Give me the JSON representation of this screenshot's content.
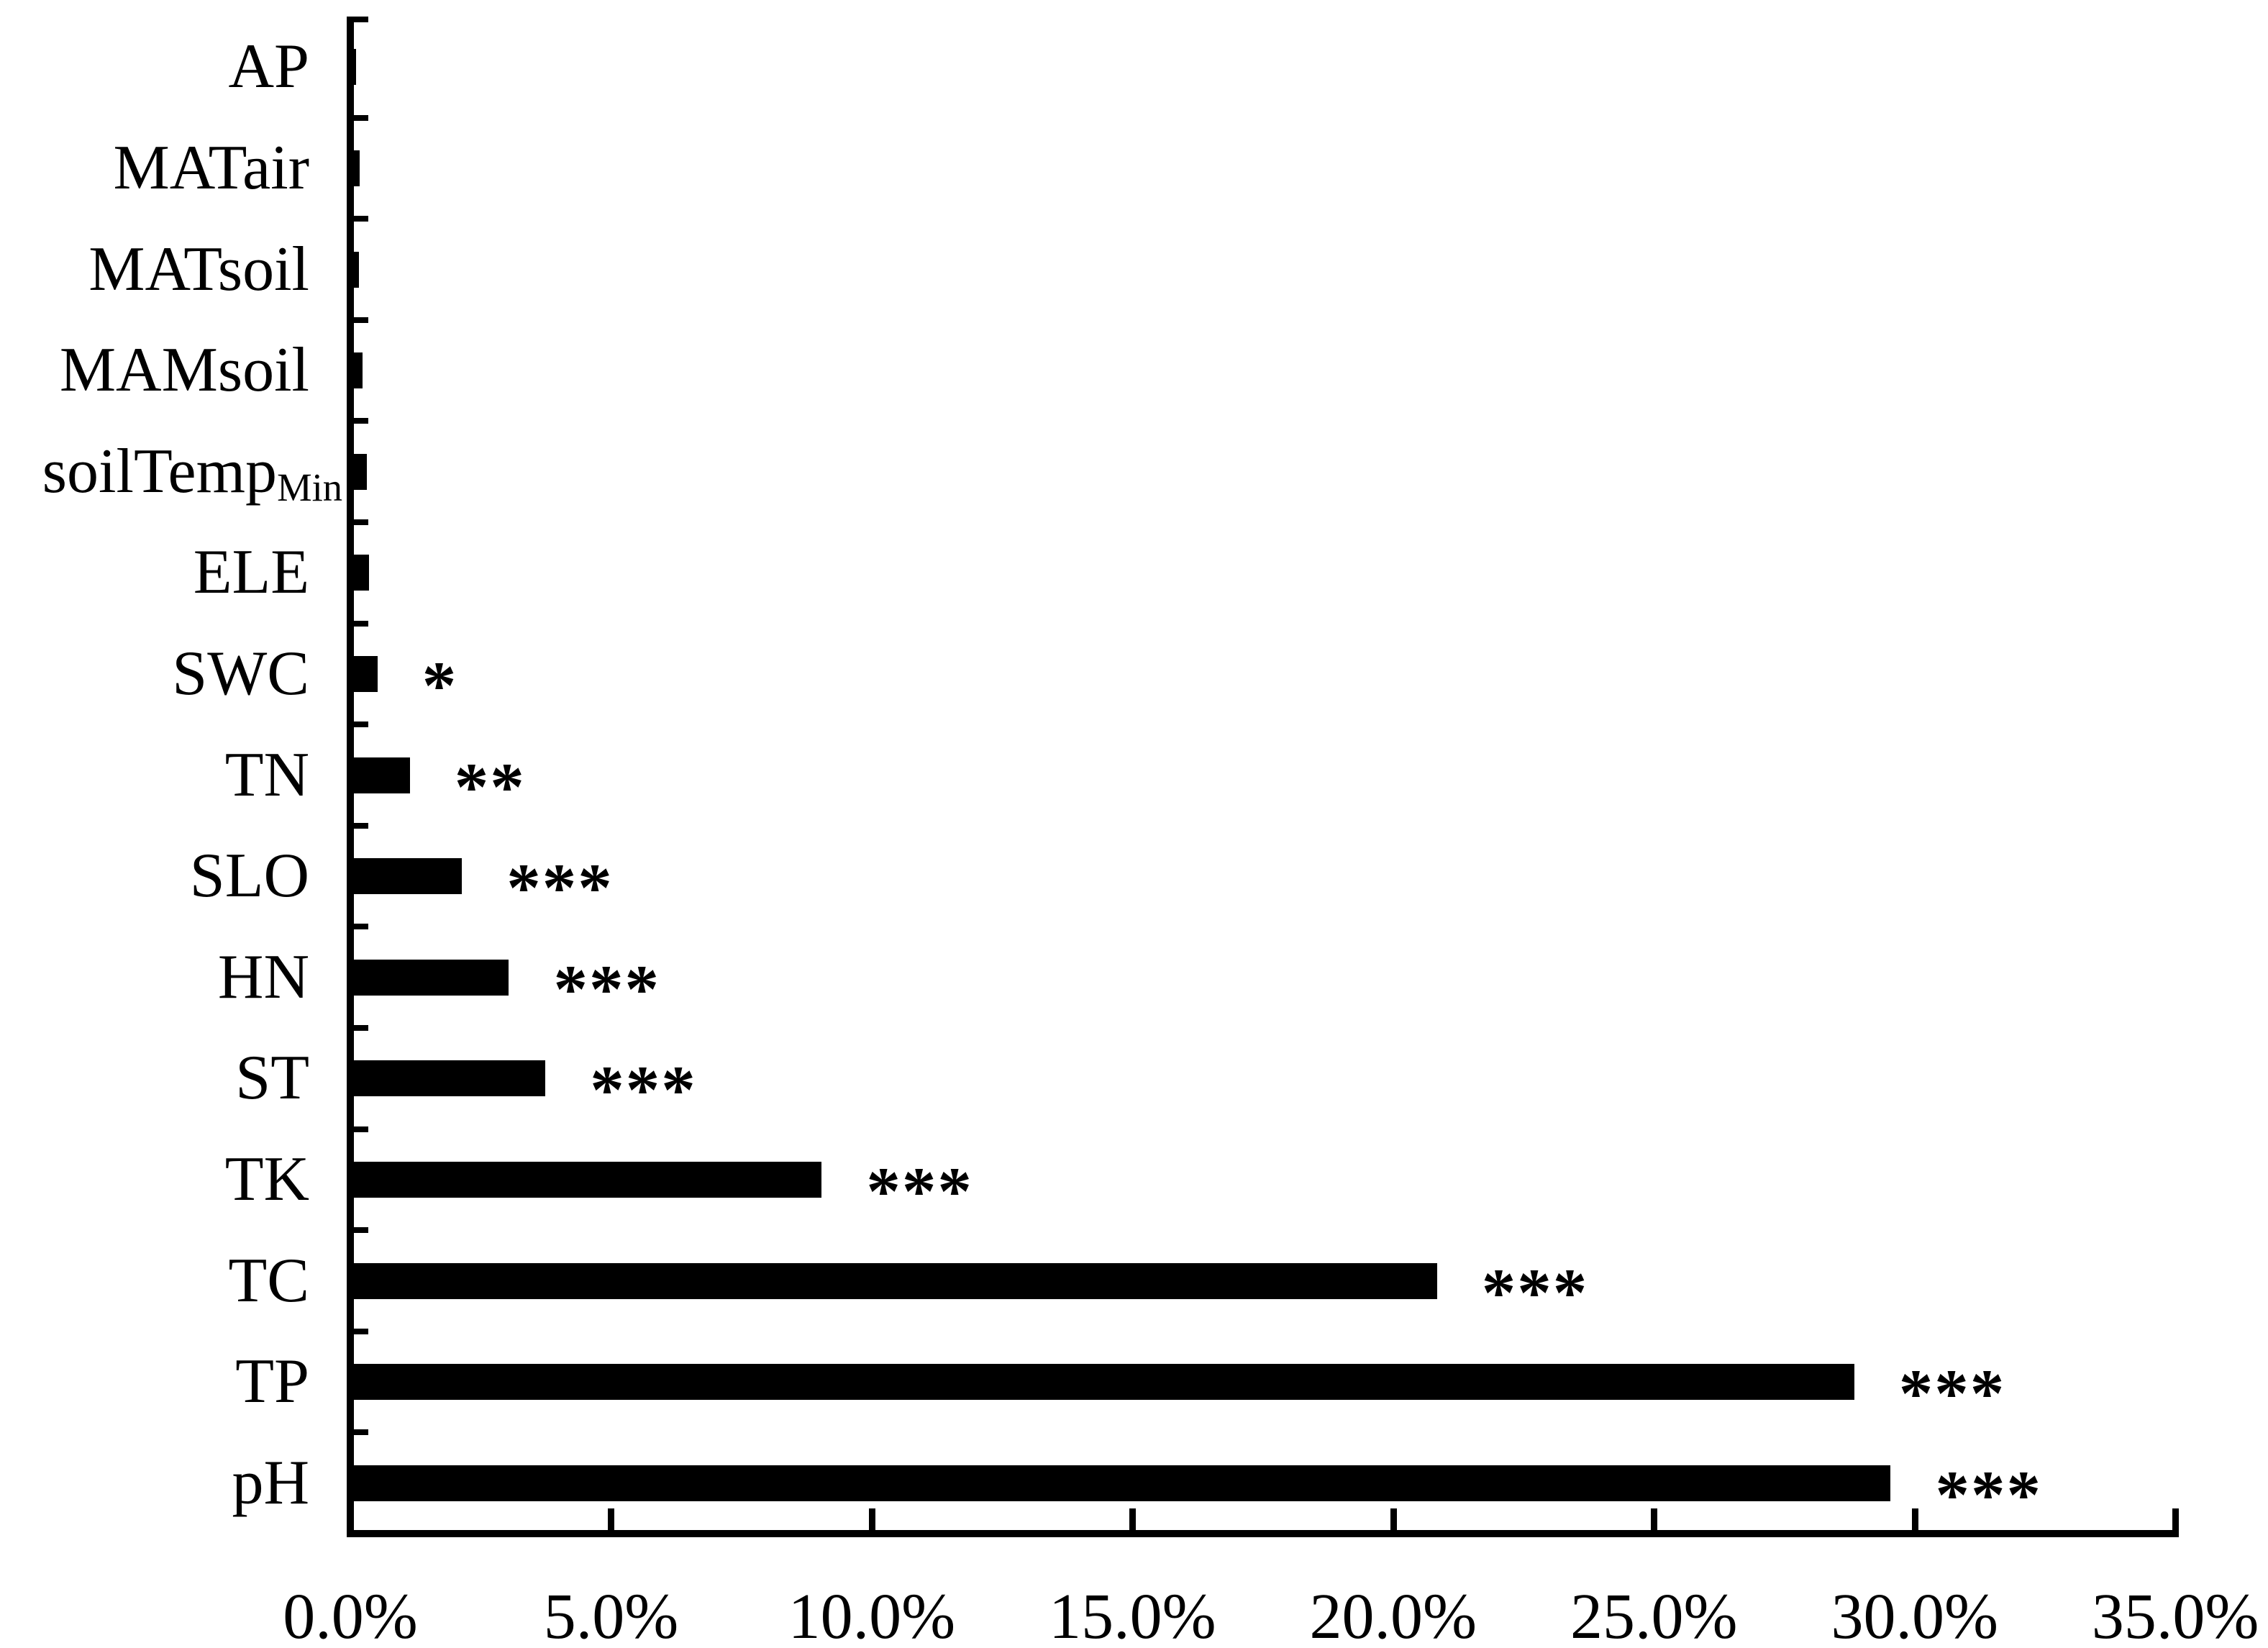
{
  "chart_data": {
    "type": "bar",
    "orientation": "horizontal",
    "title": "",
    "xlabel": "",
    "ylabel": "",
    "xlim": [
      0,
      35
    ],
    "grid": false,
    "legend": false,
    "bar_color": "#000000",
    "background_color": "#ffffff",
    "axis_color": "#000000",
    "x_tick_labels": [
      "0.0%",
      "5.0%",
      "10.0%",
      "15.0%",
      "20.0%",
      "25.0%",
      "30.0%",
      "35.0%"
    ],
    "x_tick_values": [
      0,
      5,
      10,
      15,
      20,
      25,
      30,
      35
    ],
    "rows": [
      {
        "label": "AP",
        "label_sub": "",
        "value": 0.07,
        "significance": ""
      },
      {
        "label": "MATair",
        "label_sub": "",
        "value": 0.14,
        "significance": ""
      },
      {
        "label": "MATsoil",
        "label_sub": "",
        "value": 0.13,
        "significance": ""
      },
      {
        "label": "MAMsoil",
        "label_sub": "",
        "value": 0.2,
        "significance": ""
      },
      {
        "label": "soilTemp",
        "label_sub": "Min",
        "value": 0.28,
        "significance": ""
      },
      {
        "label": "ELE",
        "label_sub": "",
        "value": 0.32,
        "significance": ""
      },
      {
        "label": "SWC",
        "label_sub": "",
        "value": 0.48,
        "significance": "*"
      },
      {
        "label": "TN",
        "label_sub": "",
        "value": 1.1,
        "significance": "**"
      },
      {
        "label": "SLO",
        "label_sub": "",
        "value": 2.1,
        "significance": "***"
      },
      {
        "label": "HN",
        "label_sub": "",
        "value": 3.0,
        "significance": "***"
      },
      {
        "label": "ST",
        "label_sub": "",
        "value": 3.7,
        "significance": "***"
      },
      {
        "label": "TK",
        "label_sub": "",
        "value": 9.0,
        "significance": "***"
      },
      {
        "label": "TC",
        "label_sub": "",
        "value": 20.8,
        "significance": "***"
      },
      {
        "label": "TP",
        "label_sub": "",
        "value": 28.8,
        "significance": "***"
      },
      {
        "label": "pH",
        "label_sub": "",
        "value": 29.5,
        "significance": "***"
      }
    ]
  }
}
